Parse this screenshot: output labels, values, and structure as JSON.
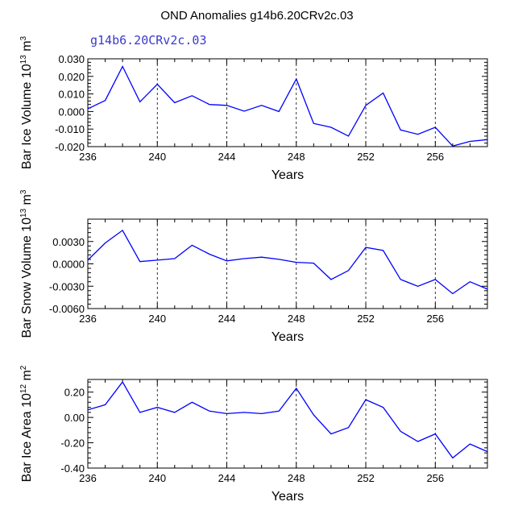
{
  "title": "OND Anomalies g14b6.20CRv2c.03",
  "subtitle": "g14b6.20CRv2c.03",
  "chart_data": [
    {
      "type": "line",
      "ylabel": "Bar Ice Volume 10",
      "ylabel_exp": "13",
      "ylabel_unit": " m",
      "ylabel_unit_exp": "3",
      "xlabel": "Years",
      "xlim": [
        236,
        259
      ],
      "ylim": [
        -0.02,
        0.03
      ],
      "xticks": [
        236,
        240,
        244,
        248,
        252,
        256
      ],
      "xtick_labels": [
        "236",
        "240",
        "244",
        "248",
        "252",
        "256"
      ],
      "grid_x": [
        240,
        244,
        248,
        252,
        256
      ],
      "yticks": [
        -0.02,
        -0.01,
        0.0,
        0.01,
        0.02,
        0.03
      ],
      "ytick_labels": [
        "-0.020",
        "-0.010",
        "0.000",
        "0.010",
        "0.020",
        "0.030"
      ],
      "series": [
        {
          "name": "g14b6.20CRv2c.03",
          "color": "#0000ff",
          "x": [
            236,
            237,
            238,
            239,
            240,
            241,
            242,
            243,
            244,
            245,
            246,
            247,
            248,
            249,
            250,
            251,
            252,
            253,
            254,
            255,
            256,
            257,
            258,
            259
          ],
          "values": [
            0.0015,
            0.0063,
            0.0257,
            0.0055,
            0.0155,
            0.005,
            0.009,
            0.004,
            0.0035,
            0.0002,
            0.0035,
            0.0,
            0.0185,
            -0.0068,
            -0.009,
            -0.014,
            0.0035,
            0.0105,
            -0.0105,
            -0.013,
            -0.009,
            -0.0197,
            -0.017,
            -0.016
          ]
        }
      ]
    },
    {
      "type": "line",
      "ylabel": "Bar Snow Volume 10",
      "ylabel_exp": "13",
      "ylabel_unit": " m",
      "ylabel_unit_exp": "3",
      "xlabel": "Years",
      "xlim": [
        236,
        259
      ],
      "ylim": [
        -0.006,
        0.006
      ],
      "xticks": [
        236,
        240,
        244,
        248,
        252,
        256
      ],
      "xtick_labels": [
        "236",
        "240",
        "244",
        "248",
        "252",
        "256"
      ],
      "grid_x": [
        240,
        244,
        248,
        252,
        256
      ],
      "yticks": [
        -0.006,
        -0.003,
        0.0,
        0.003
      ],
      "ytick_labels": [
        "-0.0060",
        "-0.0030",
        "0.0000",
        "0.0030"
      ],
      "series": [
        {
          "name": "g14b6.20CRv2c.03",
          "color": "#0000ff",
          "x": [
            236,
            237,
            238,
            239,
            240,
            241,
            242,
            243,
            244,
            245,
            246,
            247,
            248,
            249,
            250,
            251,
            252,
            253,
            254,
            255,
            256,
            257,
            258,
            259
          ],
          "values": [
            0.0005,
            0.0028,
            0.0045,
            0.0003,
            0.0005,
            0.0007,
            0.0025,
            0.0013,
            0.0004,
            0.0007,
            0.0009,
            0.0006,
            0.0002,
            0.0001,
            -0.0021,
            -0.0009,
            0.0022,
            0.0018,
            -0.0021,
            -0.003,
            -0.0021,
            -0.004,
            -0.0024,
            -0.0034
          ]
        }
      ]
    },
    {
      "type": "line",
      "ylabel": "Bar Ice Area 10",
      "ylabel_exp": "12",
      "ylabel_unit": " m",
      "ylabel_unit_exp": "2",
      "xlabel": "Years",
      "xlim": [
        236,
        259
      ],
      "ylim": [
        -0.4,
        0.3
      ],
      "xticks": [
        236,
        240,
        244,
        248,
        252,
        256
      ],
      "xtick_labels": [
        "236",
        "240",
        "244",
        "248",
        "252",
        "256"
      ],
      "grid_x": [
        240,
        244,
        248,
        252,
        256
      ],
      "yticks": [
        -0.4,
        -0.2,
        0.0,
        0.2
      ],
      "ytick_labels": [
        "-0.40",
        "-0.20",
        "0.00",
        "0.20"
      ],
      "series": [
        {
          "name": "g14b6.20CRv2c.03",
          "color": "#0000ff",
          "x": [
            236,
            237,
            238,
            239,
            240,
            241,
            242,
            243,
            244,
            245,
            246,
            247,
            248,
            249,
            250,
            251,
            252,
            253,
            254,
            255,
            256,
            257,
            258,
            259
          ],
          "values": [
            0.06,
            0.1,
            0.28,
            0.04,
            0.08,
            0.04,
            0.12,
            0.05,
            0.03,
            0.04,
            0.03,
            0.05,
            0.23,
            0.02,
            -0.13,
            -0.08,
            0.14,
            0.08,
            -0.11,
            -0.19,
            -0.13,
            -0.32,
            -0.21,
            -0.27
          ]
        }
      ]
    }
  ]
}
